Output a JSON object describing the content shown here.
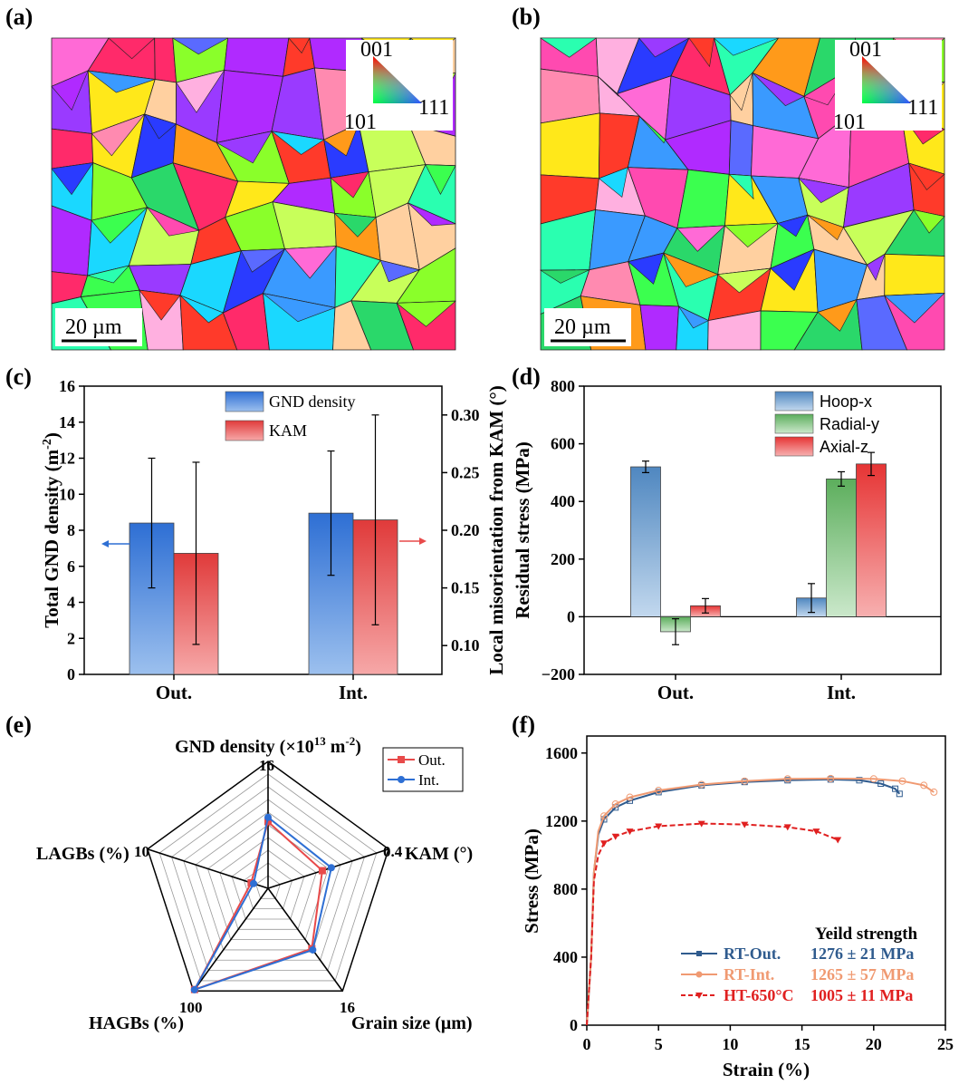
{
  "panel_labels": [
    "(a)",
    "(b)",
    "(c)",
    "(d)",
    "(e)",
    "(f)"
  ],
  "ebsd_maps": [
    {
      "scale_bar": "20 µm",
      "ipf": {
        "top": "001",
        "left": "101",
        "right": "111"
      }
    },
    {
      "scale_bar": "20 µm",
      "ipf": {
        "top": "001",
        "left": "101",
        "right": "111"
      }
    }
  ],
  "chart_data": [
    {
      "type": "bar",
      "categories": [
        "Out.",
        "Int."
      ],
      "ylabel": "Total GND density (m-2)",
      "ylabel_main": "Total GND density (m",
      "ylabel_sup": "-2",
      "ylabel_end": ")",
      "y2label": "Local misorientation from KAM (°)",
      "ylim": [
        0,
        16
      ],
      "yticks": [
        "0",
        "2",
        "4",
        "6",
        "8",
        "10",
        "12",
        "14",
        "16"
      ],
      "y2lim": [
        0.075,
        0.325
      ],
      "y2ticks": [
        "0.10",
        "0.15",
        "0.20",
        "0.25",
        "0.30"
      ],
      "series": [
        {
          "name": "GND density",
          "axis": "left",
          "values": [
            8.4,
            8.95
          ],
          "error": [
            3.6,
            3.45
          ],
          "color": "#2e6fd4"
        },
        {
          "name": "KAM",
          "axis": "right",
          "values": [
            0.18,
            0.209
          ],
          "error": [
            0.079,
            0.091
          ],
          "color": "#e84a4a"
        }
      ],
      "legend": "top-center"
    },
    {
      "type": "bar",
      "categories": [
        "Out.",
        "Int."
      ],
      "ylabel": "Residual stress (MPa)",
      "ylim": [
        -200,
        800
      ],
      "yticks": [
        "−200",
        "0",
        "200",
        "400",
        "600",
        "800"
      ],
      "series": [
        {
          "name": "Hoop-x",
          "values": [
            520,
            65
          ],
          "error": [
            20,
            50
          ],
          "color": "#5b93c7"
        },
        {
          "name": "Radial-y",
          "values": [
            -52,
            478
          ],
          "error": [
            45,
            25
          ],
          "color": "#6db86d"
        },
        {
          "name": "Axial-z",
          "values": [
            38,
            530
          ],
          "error": [
            25,
            40
          ],
          "color": "#e84a4a"
        }
      ],
      "legend": "top-right"
    },
    {
      "type": "radar",
      "axes": [
        {
          "label": "GND density (×1013 m-2)",
          "label_main": "GND density (×10",
          "label_sup1": "13",
          "label_mid": " m",
          "label_sup2": "-2",
          "label_end": ")",
          "max": "16"
        },
        {
          "label": "KAM (°)",
          "max": "0.4"
        },
        {
          "label": "Grain size (μm)",
          "max": "16"
        },
        {
          "label": "HAGBs (%)",
          "max": "100"
        },
        {
          "label": "LAGBs (%)",
          "max": "10"
        }
      ],
      "series": [
        {
          "name": "Out.",
          "values": [
            8.4,
            0.18,
            9.4,
            98.6,
            1.4
          ],
          "color": "#e84a4a"
        },
        {
          "name": "Int.",
          "values": [
            8.95,
            0.21,
            9.6,
            98.8,
            1.2
          ],
          "color": "#2e6fd4"
        }
      ],
      "legend": "top-right"
    },
    {
      "type": "line",
      "xlabel": "Strain (%)",
      "ylabel": "Stress (MPa)",
      "xlim": [
        0,
        25
      ],
      "ylim": [
        0,
        1700
      ],
      "xticks": [
        "0",
        "5",
        "10",
        "15",
        "20",
        "25"
      ],
      "yticks": [
        "0",
        "400",
        "800",
        "1200",
        "1600"
      ],
      "legend_title": "Yeild strength",
      "series": [
        {
          "name": "RT-Out.",
          "yield": "1276 ± 21 MPa",
          "color": "#2f5b8e",
          "x": [
            0,
            0.3,
            0.5,
            0.8,
            1.2,
            2,
            3,
            5,
            8,
            11,
            14,
            17,
            19,
            20.5,
            21.5,
            21.8
          ],
          "y": [
            0,
            400,
            900,
            1120,
            1210,
            1280,
            1320,
            1370,
            1410,
            1430,
            1440,
            1445,
            1440,
            1420,
            1390,
            1360
          ]
        },
        {
          "name": "RT-Int.",
          "yield": "1265 ± 57 MPa",
          "color": "#f09a72",
          "x": [
            0,
            0.3,
            0.5,
            0.8,
            1.2,
            2,
            3,
            5,
            8,
            11,
            14,
            17,
            20,
            22,
            23.5,
            24.2
          ],
          "y": [
            0,
            400,
            900,
            1140,
            1230,
            1300,
            1340,
            1380,
            1415,
            1435,
            1448,
            1450,
            1448,
            1435,
            1410,
            1370
          ]
        },
        {
          "name": "HT-650°C",
          "yield": "1005 ± 11 MPa",
          "color": "#e02020",
          "x": [
            0,
            0.3,
            0.5,
            0.8,
            1.2,
            2,
            3,
            5,
            8,
            11,
            14,
            16,
            17.5
          ],
          "y": [
            0,
            400,
            850,
            1000,
            1070,
            1110,
            1140,
            1170,
            1185,
            1180,
            1165,
            1140,
            1090
          ]
        }
      ]
    }
  ]
}
